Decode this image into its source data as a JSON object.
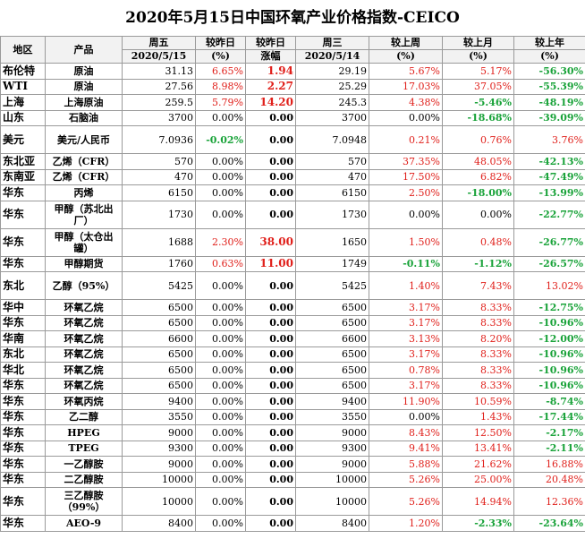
{
  "title": "2020年5月15日中国环氧产业价格指数-CEICO",
  "header": {
    "region": "地区",
    "product": "产品",
    "fri": "周五",
    "fri_date": "2020/5/15",
    "vs_prev_day": "较昨日",
    "vs_prev_day_unit": "(%)",
    "vs_prev_day2": "较昨日",
    "vs_prev_day2_unit": "涨幅",
    "wed": "周三",
    "wed_date": "2020/5/14",
    "vs_last_week": "较上周",
    "vs_last_week_unit": "(%)",
    "vs_last_month": "较上月",
    "vs_last_month_unit": "(%)",
    "vs_last_year": "较上年",
    "vs_last_year_unit": "(%)"
  },
  "rows": [
    {
      "region": "布伦特",
      "product": "原油",
      "fri": "31.13",
      "dpct": "6.65%",
      "dchg": "1.94",
      "wed": "29.19",
      "wk": "5.67%",
      "mo": "5.17%",
      "yr": "-56.30%"
    },
    {
      "region": "WTI",
      "product": "原油",
      "fri": "27.56",
      "dpct": "8.98%",
      "dchg": "2.27",
      "wed": "25.29",
      "wk": "17.03%",
      "mo": "37.05%",
      "yr": "-55.39%"
    },
    {
      "region": "上海",
      "product": "上海原油",
      "fri": "259.5",
      "dpct": "5.79%",
      "dchg": "14.20",
      "wed": "245.3",
      "wk": "4.38%",
      "mo": "-5.46%",
      "yr": "-48.19%"
    },
    {
      "region": "山东",
      "product": "石脑油",
      "fri": "3700",
      "dpct": "0.00%",
      "dchg": "0.00",
      "wed": "3700",
      "wk": "0.00%",
      "mo": "-18.68%",
      "yr": "-39.09%"
    },
    {
      "region": "美元",
      "product": "美元/人民币",
      "fri": "7.0936",
      "dpct": "-0.02%",
      "dchg": "0.00",
      "wed": "7.0948",
      "wk": "0.21%",
      "mo": "0.76%",
      "yr": "3.76%"
    },
    {
      "region": "东北亚",
      "product": "乙烯（CFR）",
      "fri": "570",
      "dpct": "0.00%",
      "dchg": "0.00",
      "wed": "570",
      "wk": "37.35%",
      "mo": "48.05%",
      "yr": "-42.13%"
    },
    {
      "region": "东南亚",
      "product": "乙烯（CFR）",
      "fri": "470",
      "dpct": "0.00%",
      "dchg": "0.00",
      "wed": "470",
      "wk": "17.50%",
      "mo": "6.82%",
      "yr": "-47.49%"
    },
    {
      "region": "华东",
      "product": "丙烯",
      "fri": "6150",
      "dpct": "0.00%",
      "dchg": "0.00",
      "wed": "6150",
      "wk": "2.50%",
      "mo": "-18.00%",
      "yr": "-13.99%"
    },
    {
      "region": "华东",
      "product": "甲醇（苏北出厂）",
      "fri": "1730",
      "dpct": "0.00%",
      "dchg": "0.00",
      "wed": "1730",
      "wk": "0.00%",
      "mo": "0.00%",
      "yr": "-22.77%"
    },
    {
      "region": "华东",
      "product": "甲醇（太仓出罐）",
      "fri": "1688",
      "dpct": "2.30%",
      "dchg": "38.00",
      "wed": "1650",
      "wk": "1.50%",
      "mo": "0.48%",
      "yr": "-26.77%"
    },
    {
      "region": "华东",
      "product": "甲醇期货",
      "fri": "1760",
      "dpct": "0.63%",
      "dchg": "11.00",
      "wed": "1749",
      "wk": "-0.11%",
      "mo": "-1.12%",
      "yr": "-26.57%"
    },
    {
      "region": "东北",
      "product": "乙醇（95%）",
      "fri": "5425",
      "dpct": "0.00%",
      "dchg": "0.00",
      "wed": "5425",
      "wk": "1.40%",
      "mo": "7.43%",
      "yr": "13.02%"
    },
    {
      "region": "华中",
      "product": "环氧乙烷",
      "fri": "6500",
      "dpct": "0.00%",
      "dchg": "0.00",
      "wed": "6500",
      "wk": "3.17%",
      "mo": "8.33%",
      "yr": "-12.75%"
    },
    {
      "region": "华东",
      "product": "环氧乙烷",
      "fri": "6500",
      "dpct": "0.00%",
      "dchg": "0.00",
      "wed": "6500",
      "wk": "3.17%",
      "mo": "8.33%",
      "yr": "-10.96%"
    },
    {
      "region": "华南",
      "product": "环氧乙烷",
      "fri": "6600",
      "dpct": "0.00%",
      "dchg": "0.00",
      "wed": "6600",
      "wk": "3.13%",
      "mo": "8.20%",
      "yr": "-12.00%"
    },
    {
      "region": "东北",
      "product": "环氧乙烷",
      "fri": "6500",
      "dpct": "0.00%",
      "dchg": "0.00",
      "wed": "6500",
      "wk": "3.17%",
      "mo": "8.33%",
      "yr": "-10.96%"
    },
    {
      "region": "华北",
      "product": "环氧乙烷",
      "fri": "6500",
      "dpct": "0.00%",
      "dchg": "0.00",
      "wed": "6500",
      "wk": "0.78%",
      "mo": "8.33%",
      "yr": "-10.96%"
    },
    {
      "region": "华东",
      "product": "环氧乙烷",
      "fri": "6500",
      "dpct": "0.00%",
      "dchg": "0.00",
      "wed": "6500",
      "wk": "3.17%",
      "mo": "8.33%",
      "yr": "-10.96%"
    },
    {
      "region": "华东",
      "product": "环氧丙烷",
      "fri": "9400",
      "dpct": "0.00%",
      "dchg": "0.00",
      "wed": "9400",
      "wk": "11.90%",
      "mo": "10.59%",
      "yr": "-8.74%"
    },
    {
      "region": "华东",
      "product": "乙二醇",
      "fri": "3550",
      "dpct": "0.00%",
      "dchg": "0.00",
      "wed": "3550",
      "wk": "0.00%",
      "mo": "1.43%",
      "yr": "-17.44%"
    },
    {
      "region": "华东",
      "product": "HPEG",
      "fri": "9000",
      "dpct": "0.00%",
      "dchg": "0.00",
      "wed": "9000",
      "wk": "8.43%",
      "mo": "12.50%",
      "yr": "-2.17%"
    },
    {
      "region": "华东",
      "product": "TPEG",
      "fri": "9300",
      "dpct": "0.00%",
      "dchg": "0.00",
      "wed": "9300",
      "wk": "9.41%",
      "mo": "13.41%",
      "yr": "-2.11%"
    },
    {
      "region": "华东",
      "product": "一乙醇胺",
      "fri": "9000",
      "dpct": "0.00%",
      "dchg": "0.00",
      "wed": "9000",
      "wk": "5.88%",
      "mo": "21.62%",
      "yr": "16.88%"
    },
    {
      "region": "华东",
      "product": "二乙醇胺",
      "fri": "10000",
      "dpct": "0.00%",
      "dchg": "0.00",
      "wed": "10000",
      "wk": "5.26%",
      "mo": "25.00%",
      "yr": "20.48%"
    },
    {
      "region": "华东",
      "product": "三乙醇胺（99%）",
      "fri": "10000",
      "dpct": "0.00%",
      "dchg": "0.00",
      "wed": "10000",
      "wk": "5.26%",
      "mo": "14.94%",
      "yr": "12.36%"
    },
    {
      "region": "华东",
      "product": "AEO-9",
      "fri": "8400",
      "dpct": "0.00%",
      "dchg": "0.00",
      "wed": "8400",
      "wk": "1.20%",
      "mo": "-2.33%",
      "yr": "-23.64%"
    }
  ],
  "colors": {
    "up": "#e0201b",
    "down": "#1aa33a"
  }
}
